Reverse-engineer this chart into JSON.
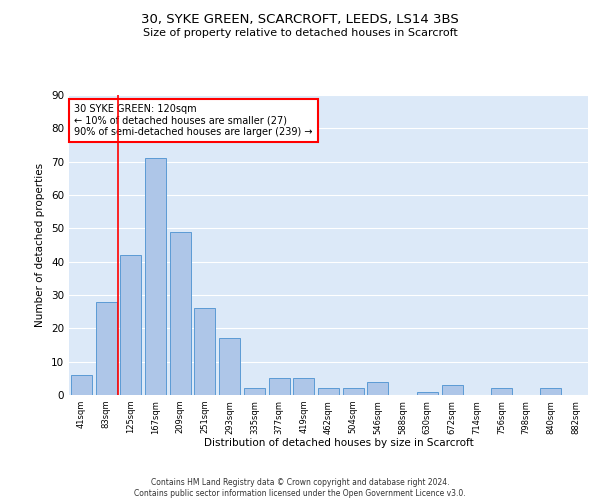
{
  "title1": "30, SYKE GREEN, SCARCROFT, LEEDS, LS14 3BS",
  "title2": "Size of property relative to detached houses in Scarcroft",
  "xlabel": "Distribution of detached houses by size in Scarcroft",
  "ylabel": "Number of detached properties",
  "categories": [
    "41sqm",
    "83sqm",
    "125sqm",
    "167sqm",
    "209sqm",
    "251sqm",
    "293sqm",
    "335sqm",
    "377sqm",
    "419sqm",
    "462sqm",
    "504sqm",
    "546sqm",
    "588sqm",
    "630sqm",
    "672sqm",
    "714sqm",
    "756sqm",
    "798sqm",
    "840sqm",
    "882sqm"
  ],
  "values": [
    6,
    28,
    42,
    71,
    49,
    26,
    17,
    2,
    5,
    5,
    2,
    2,
    4,
    0,
    1,
    3,
    0,
    2,
    0,
    2,
    0
  ],
  "bar_color": "#aec6e8",
  "bar_edge_color": "#5b9bd5",
  "red_line_x": 1.5,
  "annotation_text": "30 SYKE GREEN: 120sqm\n← 10% of detached houses are smaller (27)\n90% of semi-detached houses are larger (239) →",
  "annotation_box_color": "white",
  "annotation_box_edge": "red",
  "ylim": [
    0,
    90
  ],
  "yticks": [
    0,
    10,
    20,
    30,
    40,
    50,
    60,
    70,
    80,
    90
  ],
  "background_color": "#dce9f8",
  "grid_color": "white",
  "footer1": "Contains HM Land Registry data © Crown copyright and database right 2024.",
  "footer2": "Contains public sector information licensed under the Open Government Licence v3.0."
}
